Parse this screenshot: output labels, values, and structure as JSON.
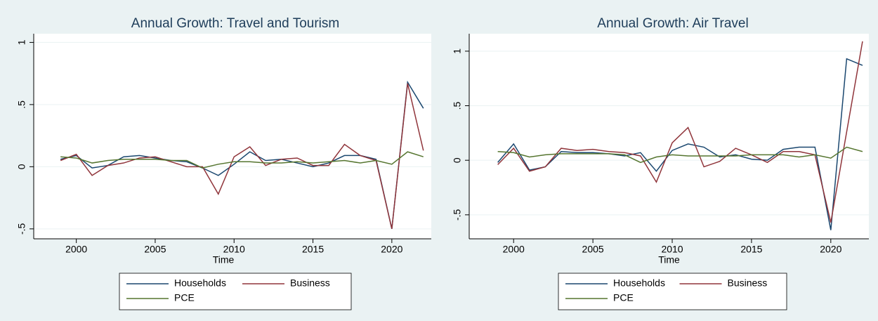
{
  "chart_data": [
    {
      "type": "line",
      "title": "Annual Growth: Travel and Tourism",
      "x_label": "Time",
      "x": [
        1999,
        2000,
        2001,
        2002,
        2003,
        2004,
        2005,
        2006,
        2007,
        2008,
        2009,
        2010,
        2011,
        2012,
        2013,
        2014,
        2015,
        2016,
        2017,
        2018,
        2019,
        2020,
        2021,
        2022
      ],
      "series": [
        {
          "name": "Households",
          "color": "#1a476f",
          "values": [
            0.06,
            0.09,
            -0.01,
            0.01,
            0.08,
            0.09,
            0.07,
            0.05,
            0.04,
            -0.01,
            -0.07,
            0.02,
            0.12,
            0.05,
            0.06,
            0.03,
            0,
            0.03,
            0.09,
            0.09,
            0.06,
            -0.5,
            0.68,
            0.47
          ]
        },
        {
          "name": "Business",
          "color": "#90353b",
          "values": [
            0.05,
            0.1,
            -0.07,
            0.01,
            0.03,
            0.07,
            0.08,
            0.04,
            0,
            0,
            -0.22,
            0.08,
            0.16,
            0.01,
            0.06,
            0.07,
            0.01,
            0.01,
            0.18,
            0.09,
            0.05,
            -0.5,
            0.67,
            0.13
          ]
        },
        {
          "name": "PCE",
          "color": "#55752f",
          "values": [
            0.08,
            0.07,
            0.03,
            0.05,
            0.06,
            0.06,
            0.06,
            0.05,
            0.05,
            -0.01,
            0.02,
            0.04,
            0.04,
            0.03,
            0.03,
            0.04,
            0.03,
            0.04,
            0.05,
            0.03,
            0.05,
            0.02,
            0.12,
            0.08
          ]
        }
      ],
      "xlim": [
        1997.3,
        2022.5
      ],
      "xticks": [
        2000,
        2005,
        2010,
        2015,
        2020
      ],
      "ylim": [
        -0.58,
        1.07
      ],
      "yticks": [
        {
          "value": -0.5,
          "label": "-.5"
        },
        0,
        {
          "value": 0.5,
          "label": ".5"
        },
        1
      ],
      "grid": true,
      "legend": "bottom"
    },
    {
      "type": "line",
      "title": "Annual Growth: Air Travel",
      "x_label": "Time",
      "x": [
        1999,
        2000,
        2001,
        2002,
        2003,
        2004,
        2005,
        2006,
        2007,
        2008,
        2009,
        2010,
        2011,
        2012,
        2013,
        2014,
        2015,
        2016,
        2017,
        2018,
        2019,
        2020,
        2021,
        2022
      ],
      "series": [
        {
          "name": "Households",
          "color": "#1a476f",
          "values": [
            -0.02,
            0.15,
            -0.09,
            -0.06,
            0.08,
            0.07,
            0.07,
            0.06,
            0.04,
            0.07,
            -0.1,
            0.09,
            0.15,
            0.12,
            0.03,
            0.05,
            0.01,
            0,
            0.1,
            0.12,
            0.12,
            -0.64,
            0.93,
            0.87
          ]
        },
        {
          "name": "Business",
          "color": "#90353b",
          "values": [
            -0.04,
            0.11,
            -0.1,
            -0.06,
            0.11,
            0.09,
            0.1,
            0.08,
            0.07,
            0.04,
            -0.2,
            0.16,
            0.3,
            -0.06,
            -0.01,
            0.11,
            0.05,
            -0.02,
            0.08,
            0.08,
            0.05,
            -0.57,
            0.26,
            1.09
          ]
        },
        {
          "name": "PCE",
          "color": "#55752f",
          "values": [
            0.08,
            0.07,
            0.03,
            0.05,
            0.06,
            0.06,
            0.06,
            0.06,
            0.05,
            -0.02,
            0.03,
            0.05,
            0.04,
            0.04,
            0.04,
            0.04,
            0.05,
            0.05,
            0.05,
            0.03,
            0.05,
            0.02,
            0.12,
            0.08
          ]
        }
      ],
      "xlim": [
        1997.2,
        2022.4
      ],
      "xticks": [
        2000,
        2005,
        2010,
        2015,
        2020
      ],
      "ylim": [
        -0.72,
        1.16
      ],
      "yticks": [
        {
          "value": -0.5,
          "label": "-.5"
        },
        0,
        {
          "value": 0.5,
          "label": ".5"
        },
        1
      ],
      "grid": true,
      "legend": "bottom"
    }
  ]
}
